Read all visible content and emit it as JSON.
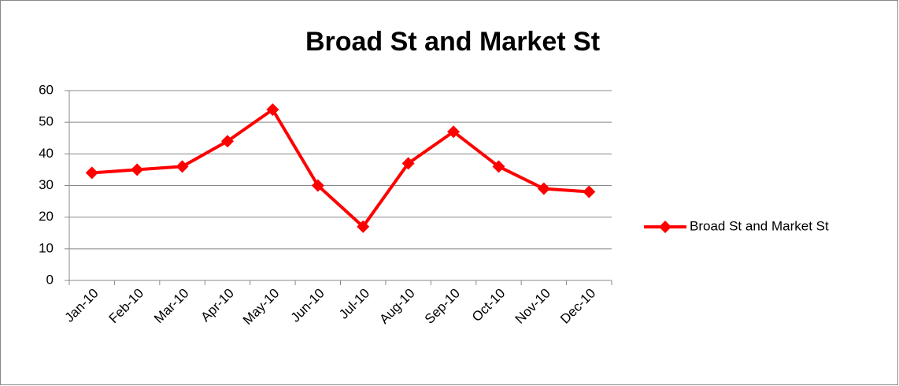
{
  "chart_data": {
    "type": "line",
    "title": "Broad St and Market St",
    "categories": [
      "Jan-10",
      "Feb-10",
      "Mar-10",
      "Apr-10",
      "May-10",
      "Jun-10",
      "Jul-10",
      "Aug-10",
      "Sep-10",
      "Oct-10",
      "Nov-10",
      "Dec-10"
    ],
    "series": [
      {
        "name": "Broad St and Market St",
        "color": "#ff0000",
        "values": [
          34,
          35,
          36,
          44,
          54,
          30,
          17,
          37,
          47,
          36,
          29,
          28
        ]
      }
    ],
    "ylim": [
      0,
      60
    ],
    "yticks": [
      0,
      10,
      20,
      30,
      40,
      50,
      60
    ],
    "grid": true,
    "legend": "right"
  }
}
